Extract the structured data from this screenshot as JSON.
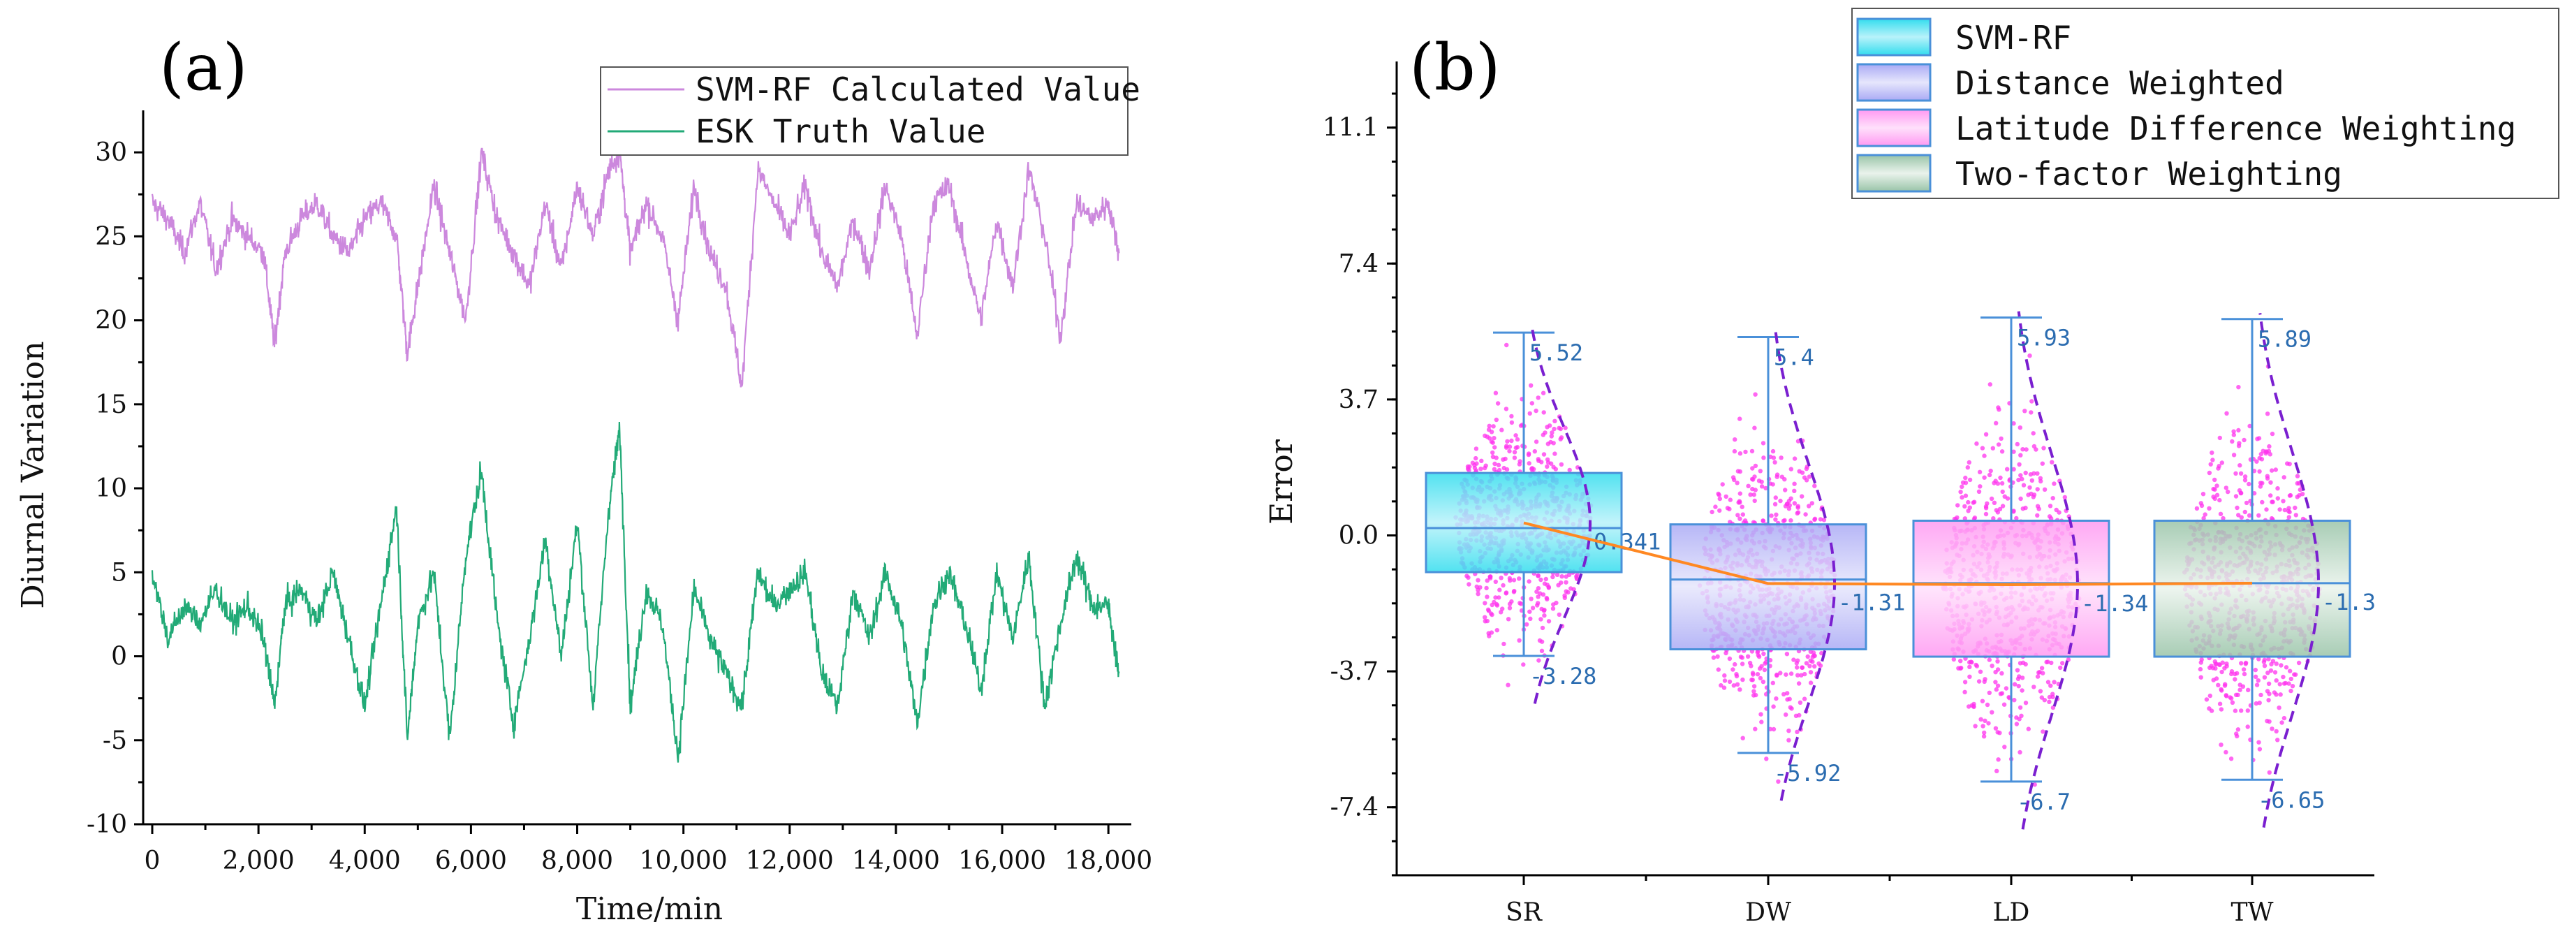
{
  "chart_data": [
    {
      "panel": "(a)",
      "type": "line",
      "title": "",
      "xlabel": "Time/min",
      "ylabel": "Diurnal Variation",
      "xlim": [
        0,
        18300
      ],
      "ylim": [
        -10,
        32.5
      ],
      "x_ticks": [
        0,
        2000,
        4000,
        6000,
        8000,
        10000,
        12000,
        14000,
        16000,
        18000
      ],
      "x_tick_labels": [
        "0",
        "2,000",
        "4,000",
        "6,000",
        "8,000",
        "10,000",
        "12,000",
        "14,000",
        "16,000",
        "18,000"
      ],
      "y_ticks": [
        -10,
        -5,
        0,
        5,
        10,
        15,
        20,
        25,
        30
      ],
      "y_tick_labels": [
        "-10",
        "-5",
        "0",
        "5",
        "10",
        "15",
        "20",
        "25",
        "30"
      ],
      "legend_position": "top-right",
      "series": [
        {
          "name": "SVM-RF Calculated Value",
          "color": "#cc88dd",
          "x": [
            0,
            300,
            600,
            900,
            1200,
            1500,
            1800,
            2100,
            2300,
            2500,
            2800,
            3100,
            3400,
            3700,
            4000,
            4300,
            4600,
            4800,
            5000,
            5300,
            5600,
            5900,
            6200,
            6500,
            6800,
            7100,
            7400,
            7700,
            8000,
            8300,
            8600,
            8800,
            9000,
            9300,
            9600,
            9900,
            10200,
            10500,
            10800,
            11100,
            11400,
            11700,
            12000,
            12300,
            12600,
            12900,
            13200,
            13500,
            13800,
            14100,
            14400,
            14700,
            15000,
            15300,
            15600,
            15900,
            16200,
            16500,
            16800,
            17100,
            17400,
            17700,
            18000,
            18200
          ],
          "values": [
            27,
            26,
            24,
            27,
            23,
            26,
            25,
            24,
            18.5,
            24,
            26,
            27,
            25,
            24,
            26,
            27,
            25,
            18,
            22,
            28,
            24,
            20,
            30,
            26,
            24,
            22,
            27,
            23,
            28,
            25,
            29,
            30,
            24,
            27,
            25,
            20,
            28,
            24,
            22,
            16,
            29,
            27,
            25,
            28,
            24,
            22,
            26,
            23,
            28,
            25,
            19,
            27,
            28,
            24,
            20,
            26,
            22,
            29,
            25,
            19,
            27,
            26,
            27,
            24
          ]
        },
        {
          "name": "ESK Truth Value",
          "color": "#22aa77",
          "x": [
            0,
            300,
            600,
            900,
            1200,
            1500,
            1800,
            2100,
            2300,
            2500,
            2800,
            3100,
            3400,
            3700,
            4000,
            4300,
            4600,
            4800,
            5000,
            5300,
            5600,
            5900,
            6200,
            6500,
            6800,
            7100,
            7400,
            7700,
            8000,
            8300,
            8600,
            8800,
            9000,
            9300,
            9600,
            9900,
            10200,
            10500,
            10800,
            11100,
            11400,
            11700,
            12000,
            12300,
            12600,
            12900,
            13200,
            13500,
            13800,
            14100,
            14400,
            14700,
            15000,
            15300,
            15600,
            15900,
            16200,
            16500,
            16800,
            17100,
            17400,
            17700,
            18000,
            18200
          ],
          "values": [
            5,
            1,
            3,
            2,
            4,
            2,
            3,
            1,
            -3,
            3,
            4,
            2,
            5,
            1,
            -3,
            3,
            9,
            -5,
            2,
            5,
            -5,
            6,
            11,
            2,
            -4,
            1,
            7,
            0,
            8,
            -3,
            9,
            13.5,
            -3,
            4,
            2,
            -6,
            4,
            1,
            -1,
            -3,
            5,
            3,
            4,
            5,
            -1,
            -3,
            4,
            1,
            5,
            2,
            -4,
            3,
            5,
            2,
            -2,
            5,
            1,
            6,
            -3,
            2,
            6,
            3,
            3,
            -1
          ]
        }
      ]
    },
    {
      "panel": "(b)",
      "type": "box",
      "title": "",
      "xlabel": "",
      "ylabel": "Error",
      "ylim": [
        -9.25,
        12.9
      ],
      "y_ticks": [
        -7.4,
        -3.7,
        0.0,
        3.7,
        7.4,
        11.1
      ],
      "y_tick_labels": [
        "-7.4",
        "-3.7",
        "0.0",
        "3.7",
        "7.4",
        "11.1"
      ],
      "categories": [
        "SR",
        "DW",
        "LD",
        "TW"
      ],
      "legend_position": "top-right",
      "legend": [
        "SVM-RF",
        "Distance Weighted",
        "Latitude Difference Weighting",
        "Two-factor Weighting"
      ],
      "series": [
        {
          "name": "SVM-RF",
          "category": "SR",
          "color": "#33ddee",
          "q1": -1.0,
          "median": 0.2,
          "q3": 1.7,
          "mean": 0.341,
          "whisker_low": -3.28,
          "whisker_high": 5.52,
          "mean_label": "0.341",
          "low_label": "-3.28",
          "high_label": "5.52"
        },
        {
          "name": "Distance Weighted",
          "category": "DW",
          "color": "#8f8fee",
          "q1": -3.1,
          "median": -1.2,
          "q3": 0.3,
          "mean": -1.31,
          "whisker_low": -5.92,
          "whisker_high": 5.4,
          "mean_label": "-1.31",
          "low_label": "-5.92",
          "high_label": "5.4"
        },
        {
          "name": "Latitude Difference Weighting",
          "category": "LD",
          "color": "#ff66ee",
          "q1": -3.3,
          "median": -1.3,
          "q3": 0.4,
          "mean": -1.34,
          "whisker_low": -6.7,
          "whisker_high": 5.93,
          "mean_label": "-1.34",
          "low_label": "-6.7",
          "high_label": "5.93"
        },
        {
          "name": "Two-factor Weighting",
          "category": "TW",
          "color": "#77aa88",
          "q1": -3.3,
          "median": -1.3,
          "q3": 0.4,
          "mean": -1.3,
          "whisker_low": -6.65,
          "whisker_high": 5.89,
          "mean_label": "-1.3",
          "low_label": "-6.65",
          "high_label": "5.89"
        }
      ],
      "mean_line_color": "#ff8822",
      "points_color": "#ff33ee",
      "box_edge_color": "#4a90d9",
      "curve_color": "#7a1fd0"
    }
  ]
}
